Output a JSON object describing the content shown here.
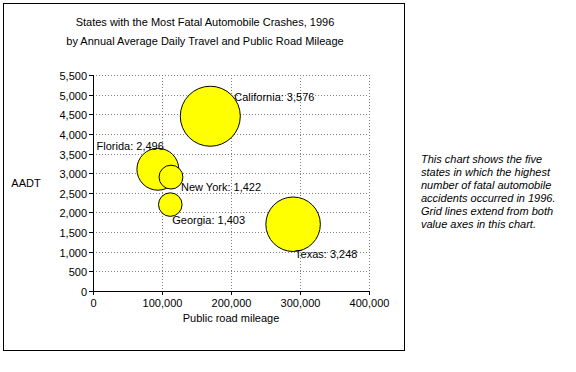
{
  "chart_data": {
    "type": "bubble",
    "title": [
      "States with the Most Fatal Automobile Crashes, 1996",
      "by Annual Average Daily Travel and Public Road Mileage"
    ],
    "x_label": "Public road mileage",
    "y_label": "AADT",
    "x": [
      170000,
      94000,
      113000,
      112000,
      290000
    ],
    "values": [
      4450,
      3100,
      2900,
      2200,
      1700
    ],
    "sizes": [
      3576,
      2496,
      1422,
      1403,
      3248
    ],
    "size_labels": [
      "California: 3,576",
      "Florida: 2,496",
      "New York: 1,422",
      "Georgia: 1,403",
      "Texas: 3,248"
    ],
    "color": "#ffff00",
    "grid": true,
    "xlim": [
      0,
      400000
    ],
    "xticks": [
      0,
      {
        "value": 100000,
        "label": "100,000"
      },
      {
        "value": 200000,
        "label": "200,000"
      },
      {
        "value": 300000,
        "label": "300,000"
      },
      {
        "value": 400000,
        "label": "400,000"
      }
    ],
    "ylim": [
      0,
      5500
    ],
    "yticks": [
      0,
      500,
      {
        "value": 1000,
        "label": "1,000"
      },
      {
        "value": 1500,
        "label": "1,500"
      },
      {
        "value": 2000,
        "label": "2,000"
      },
      {
        "value": 2500,
        "label": "2,500"
      },
      {
        "value": 3000,
        "label": "3,000"
      },
      {
        "value": 3500,
        "label": "3,500"
      },
      {
        "value": 4000,
        "label": "4,000"
      },
      {
        "value": 4500,
        "label": "4,500"
      },
      {
        "value": 5000,
        "label": "5,000"
      },
      {
        "value": 5500,
        "label": "5,500"
      }
    ],
    "annotations": [
      "This chart shows the five",
      "states in which the highest",
      "number of fatal automobile",
      "accidents occurred in 1996.",
      "Grid lines extend from both",
      "value axes in this chart."
    ]
  }
}
